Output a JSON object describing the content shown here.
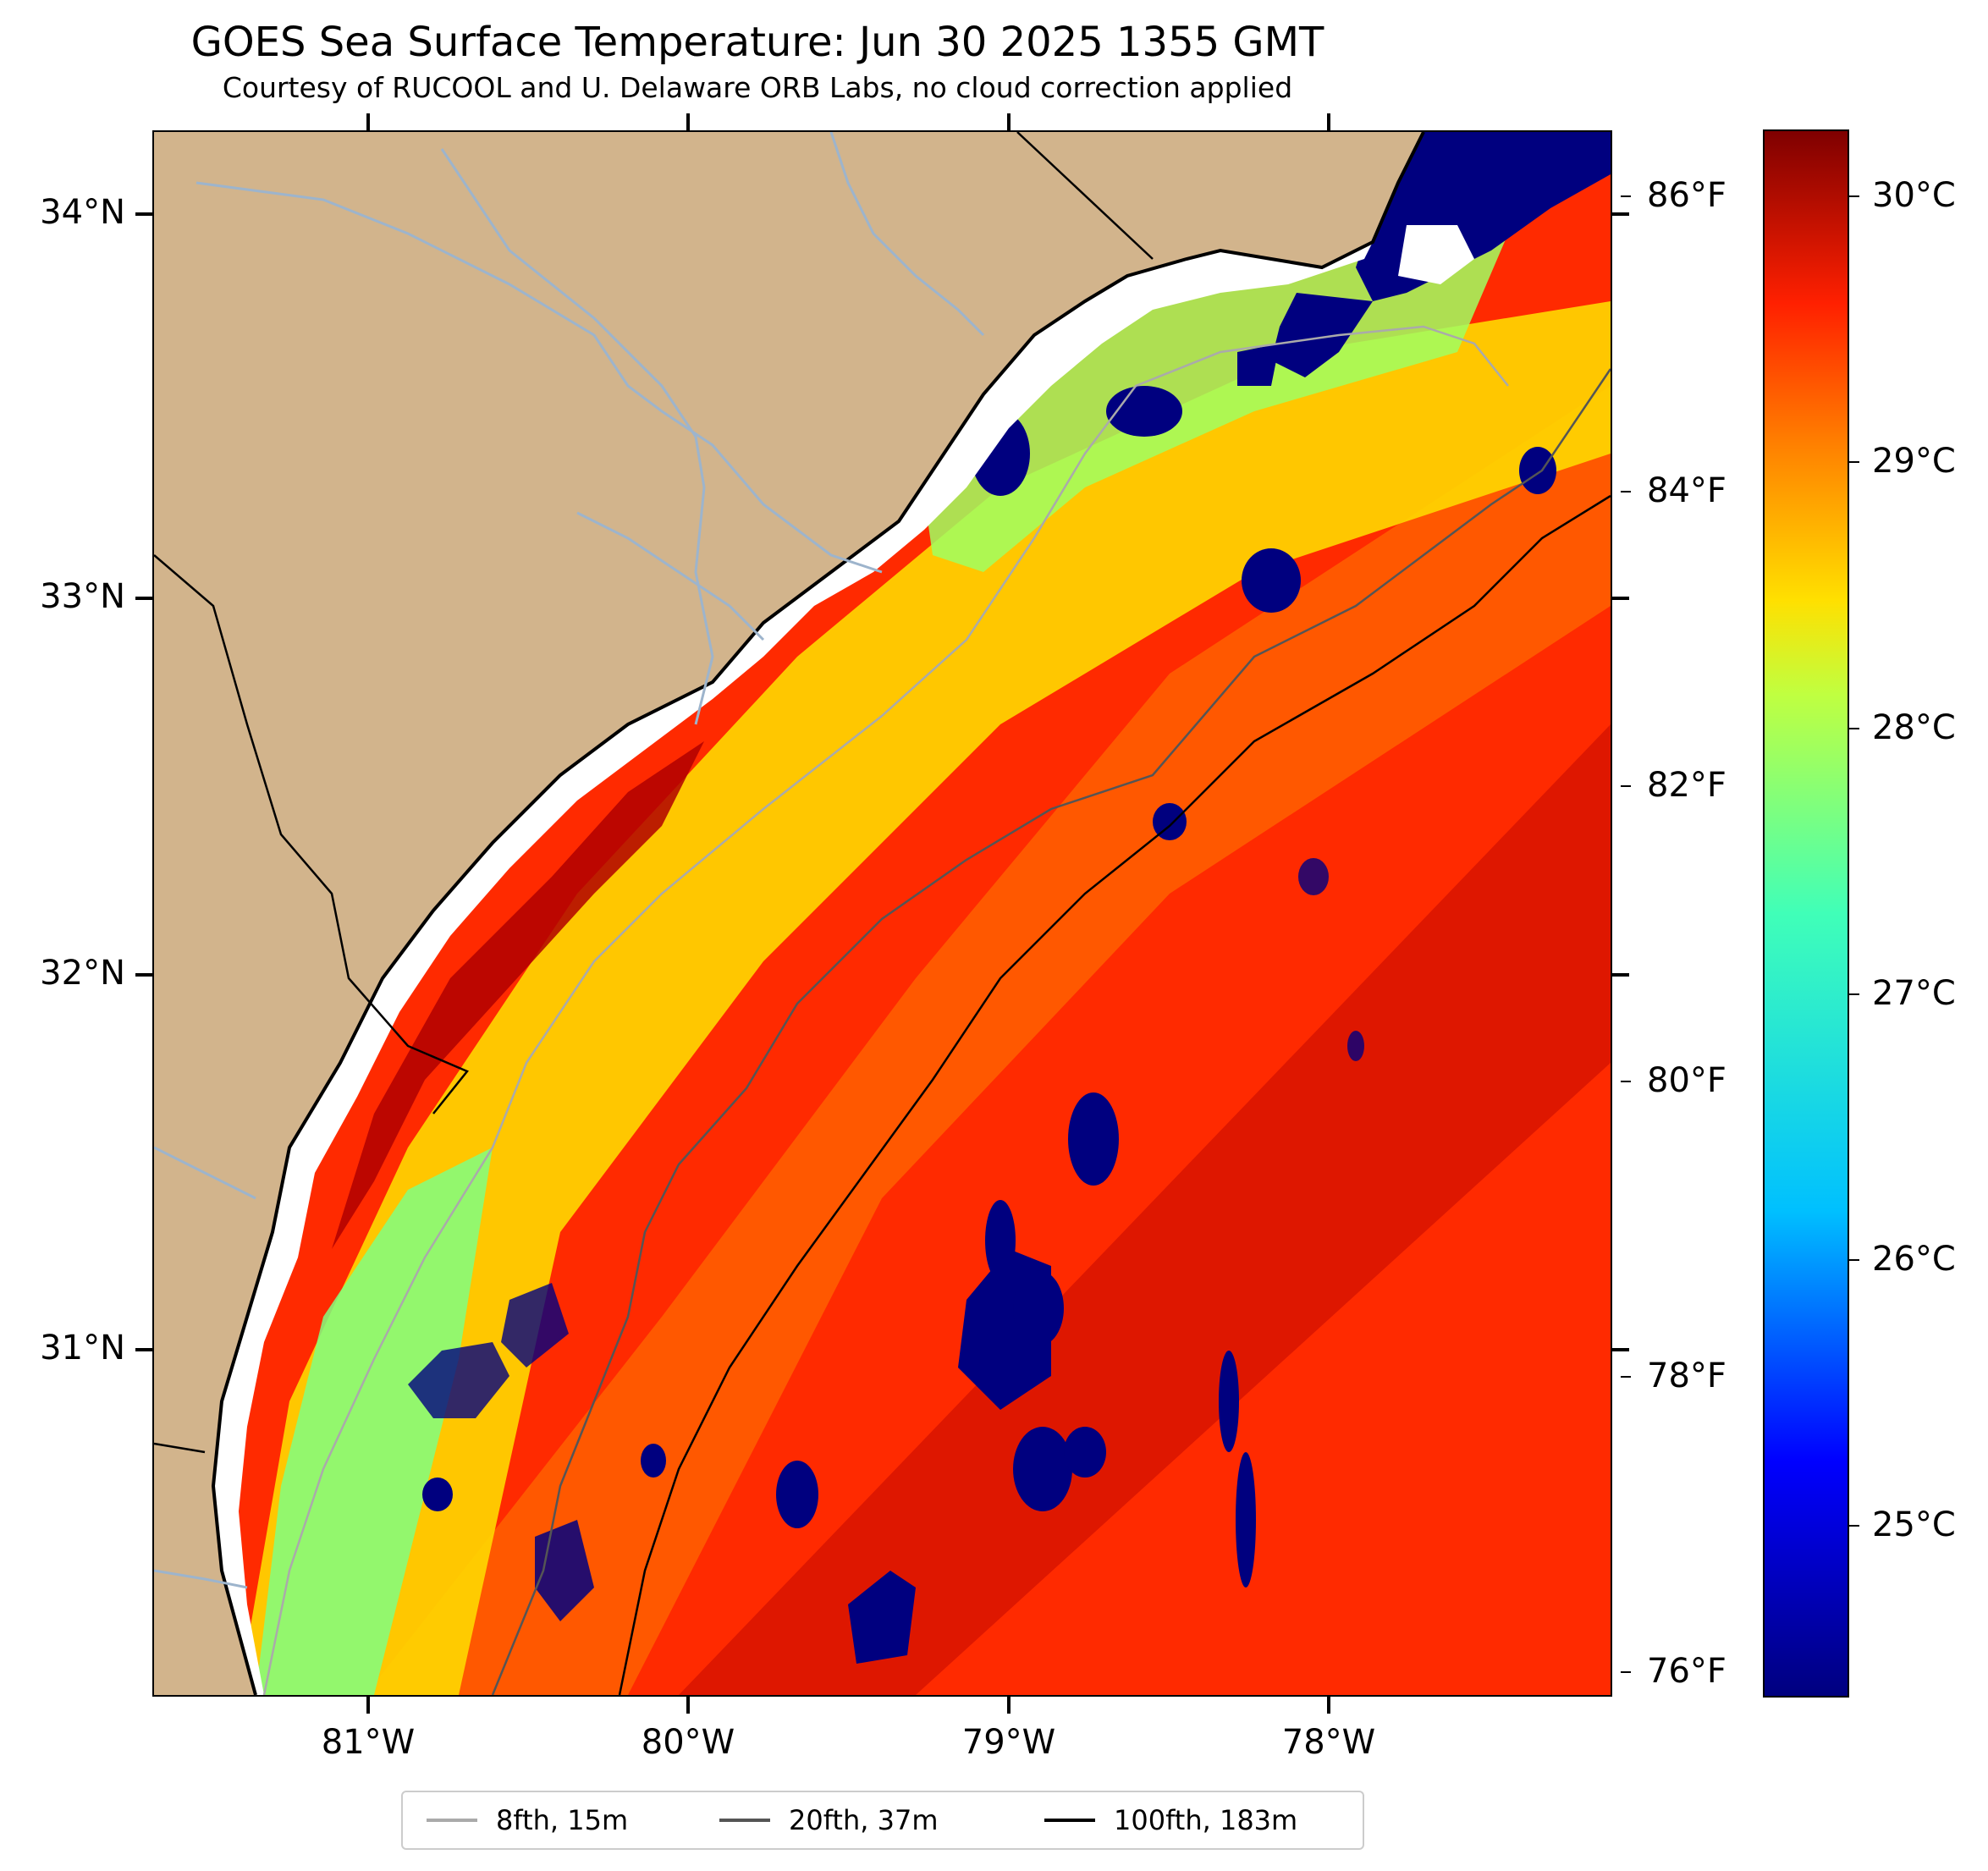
{
  "title": "GOES Sea Surface Temperature: Jun 30 2025 1355 GMT",
  "subtitle": "Courtesy of RUCOOL and U. Delaware ORB Labs, no cloud correction applied",
  "colors": {
    "land": "#d2b48c",
    "cloud_mask": "#00007f",
    "river": "#9db4cc",
    "isobath_8fth": "#aaaaaa",
    "isobath_20fth": "#555555",
    "isobath_100fth": "#000000"
  },
  "axes": {
    "lat_labels": [
      "34°N",
      "33°N",
      "32°N",
      "31°N"
    ],
    "lon_labels": [
      "81°W",
      "80°W",
      "79°W",
      "78°W"
    ]
  },
  "colorbar": {
    "colormap": "jet",
    "celsius_labels": [
      "30°C",
      "29°C",
      "28°C",
      "27°C",
      "26°C",
      "25°C"
    ],
    "fahrenheit_labels": [
      "86°F",
      "84°F",
      "82°F",
      "80°F",
      "78°F",
      "76°F"
    ]
  },
  "legend": {
    "items": [
      {
        "label": "8fth, 15m",
        "color": "#aaaaaa"
      },
      {
        "label": "20fth, 37m",
        "color": "#555555"
      },
      {
        "label": "100fth, 183m",
        "color": "#000000"
      }
    ]
  }
}
